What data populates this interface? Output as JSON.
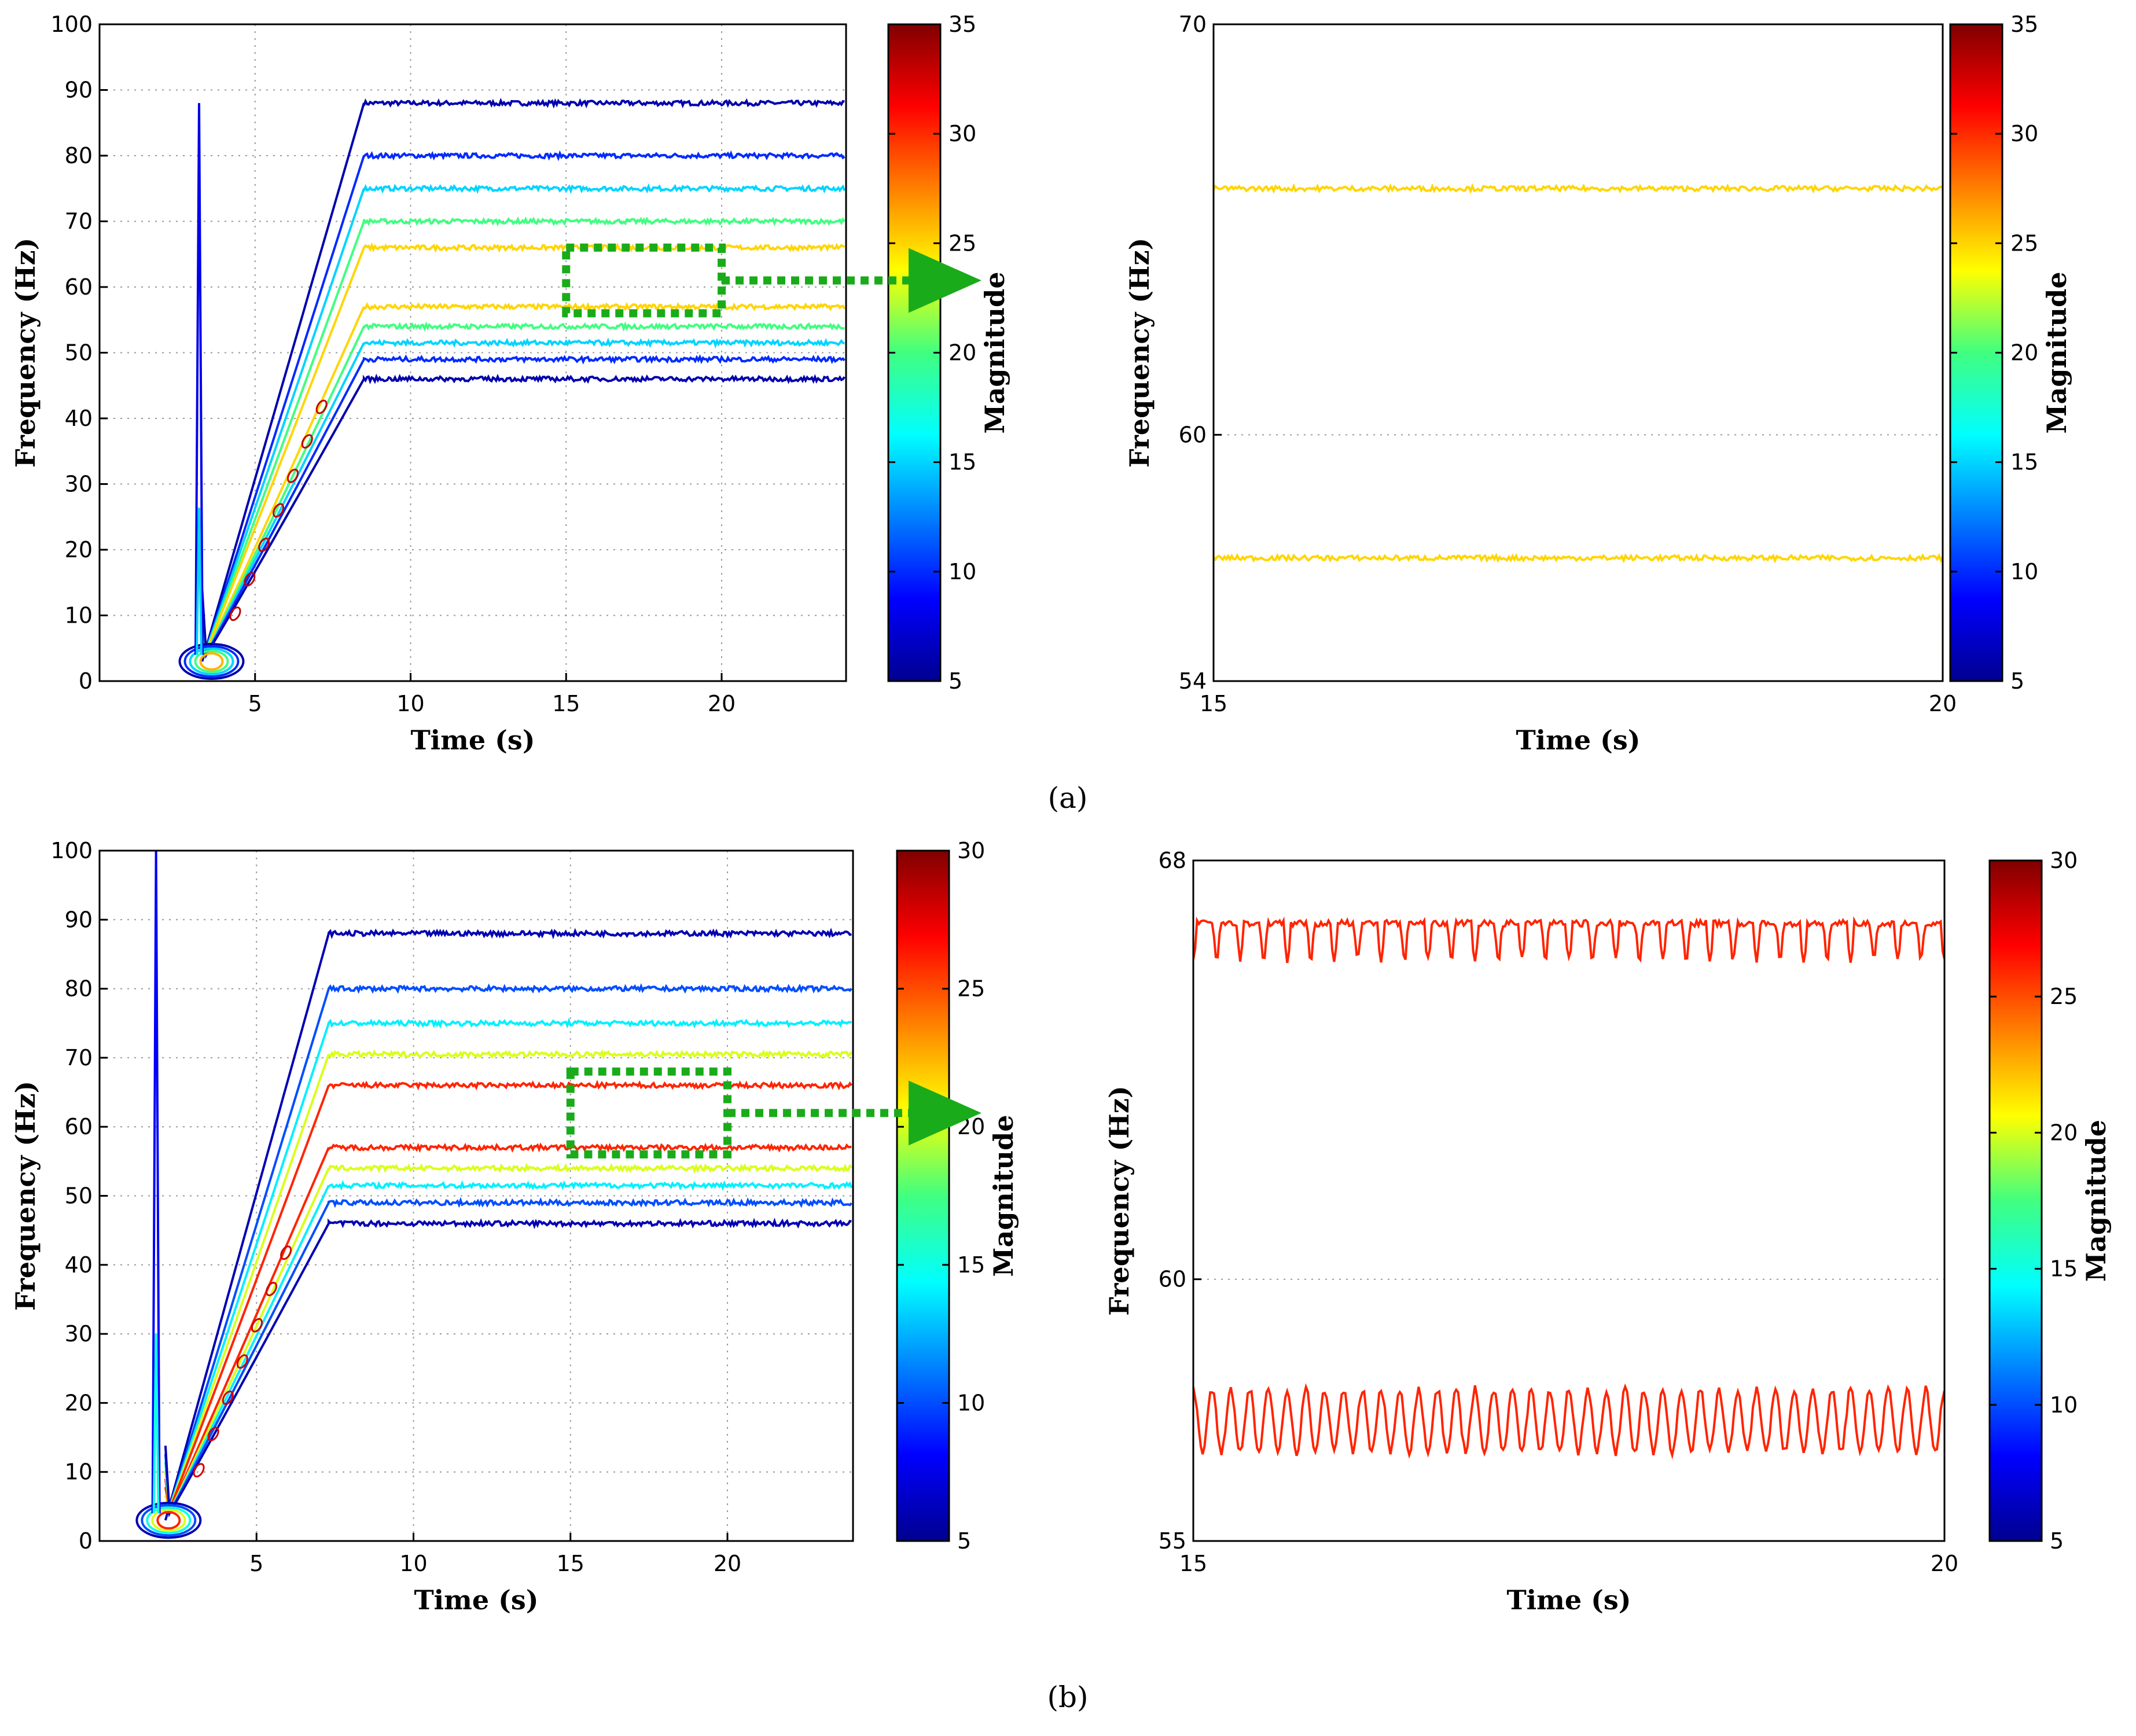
{
  "chart_data": [
    {
      "id": "a-left",
      "type": "contour",
      "xlabel": "Time (s)",
      "ylabel": "Frequency (Hz)",
      "xlim": [
        0,
        24
      ],
      "ylim": [
        0,
        100
      ],
      "xticks": [
        5,
        10,
        15,
        20
      ],
      "yticks": [
        0,
        10,
        20,
        30,
        40,
        50,
        60,
        70,
        80,
        90,
        100
      ],
      "grid": true,
      "colorbar": {
        "label": "Magnitude",
        "min": 5,
        "max": 35,
        "ticks": [
          5,
          10,
          15,
          20,
          25,
          30,
          35
        ]
      },
      "ramp": {
        "start_time": 3.3,
        "end_time": 8.5
      },
      "spike": {
        "time": 3.2,
        "peak": 88
      },
      "series": [
        {
          "name": "contour 88 Hz",
          "final_freq": 88,
          "magnitude": 6
        },
        {
          "name": "contour 80 Hz",
          "final_freq": 80,
          "magnitude": 10
        },
        {
          "name": "contour 75 Hz",
          "final_freq": 75,
          "magnitude": 15
        },
        {
          "name": "contour 70 Hz",
          "final_freq": 70,
          "magnitude": 20
        },
        {
          "name": "contour 66 Hz",
          "final_freq": 66,
          "magnitude": 25
        },
        {
          "name": "contour 57 Hz",
          "final_freq": 57,
          "magnitude": 25
        },
        {
          "name": "contour 54 Hz",
          "final_freq": 54,
          "magnitude": 20
        },
        {
          "name": "contour 51.5 Hz",
          "final_freq": 51.5,
          "magnitude": 15
        },
        {
          "name": "contour 49 Hz",
          "final_freq": 49,
          "magnitude": 10
        },
        {
          "name": "contour 46 Hz",
          "final_freq": 46,
          "magnitude": 6
        }
      ],
      "zoom_box": {
        "x": [
          15,
          20
        ],
        "y": [
          56,
          66
        ]
      }
    },
    {
      "id": "a-right",
      "type": "line",
      "xlabel": "Time (s)",
      "ylabel": "Frequency (Hz)",
      "xlim": [
        15,
        20
      ],
      "ylim": [
        54,
        70
      ],
      "xticks": [
        15,
        20
      ],
      "yticks": [
        54,
        60,
        70
      ],
      "grid": true,
      "colorbar": {
        "label": "Magnitude",
        "min": 5,
        "max": 35,
        "ticks": [
          5,
          10,
          15,
          20,
          25,
          30,
          35
        ]
      },
      "series": [
        {
          "name": "upper",
          "level": 66.0,
          "magnitude": 25,
          "noise": 0.06
        },
        {
          "name": "lower",
          "level": 57.0,
          "magnitude": 25,
          "noise": 0.06
        }
      ]
    },
    {
      "id": "b-left",
      "type": "contour",
      "xlabel": "Time (s)",
      "ylabel": "Frequency (Hz)",
      "xlim": [
        0,
        24
      ],
      "ylim": [
        0,
        100
      ],
      "xticks": [
        5,
        10,
        15,
        20
      ],
      "yticks": [
        0,
        10,
        20,
        30,
        40,
        50,
        60,
        70,
        80,
        90,
        100
      ],
      "grid": true,
      "colorbar": {
        "label": "Magnitude",
        "min": 5,
        "max": 30,
        "ticks": [
          5,
          10,
          15,
          20,
          25,
          30
        ]
      },
      "ramp": {
        "start_time": 2.1,
        "end_time": 7.3
      },
      "spike": {
        "time": 1.8,
        "peak": 100
      },
      "series": [
        {
          "name": "contour 88 Hz",
          "final_freq": 88,
          "magnitude": 6
        },
        {
          "name": "contour 80 Hz",
          "final_freq": 80,
          "magnitude": 10
        },
        {
          "name": "contour 75 Hz",
          "final_freq": 75,
          "magnitude": 14
        },
        {
          "name": "contour 70.5 Hz",
          "final_freq": 70.5,
          "magnitude": 20
        },
        {
          "name": "contour 66 Hz",
          "final_freq": 66,
          "magnitude": 26
        },
        {
          "name": "contour 57 Hz",
          "final_freq": 57,
          "magnitude": 26
        },
        {
          "name": "contour 54 Hz",
          "final_freq": 54,
          "magnitude": 20
        },
        {
          "name": "contour 51.5 Hz",
          "final_freq": 51.5,
          "magnitude": 14
        },
        {
          "name": "contour 49 Hz",
          "final_freq": 49,
          "magnitude": 10
        },
        {
          "name": "contour 46 Hz",
          "final_freq": 46,
          "magnitude": 6
        }
      ],
      "zoom_box": {
        "x": [
          15,
          20
        ],
        "y": [
          56,
          68
        ]
      }
    },
    {
      "id": "b-right",
      "type": "line",
      "xlabel": "Time (s)",
      "ylabel": "Frequency (Hz)",
      "xlim": [
        15,
        20
      ],
      "ylim": [
        55,
        68
      ],
      "xticks": [
        15,
        20
      ],
      "yticks": [
        55,
        60,
        68
      ],
      "grid": true,
      "colorbar": {
        "label": "Magnitude",
        "min": 5,
        "max": 30,
        "ticks": [
          5,
          10,
          15,
          20,
          25,
          30
        ]
      },
      "series": [
        {
          "name": "upper",
          "level": 66.8,
          "amplitude": 0.5,
          "cycles": 32,
          "magnitude": 26
        },
        {
          "name": "lower",
          "level": 57.3,
          "amplitude": 0.6,
          "cycles": 40,
          "magnitude": 26
        }
      ]
    }
  ],
  "captions": {
    "a": "(a)",
    "b": "(b)"
  }
}
